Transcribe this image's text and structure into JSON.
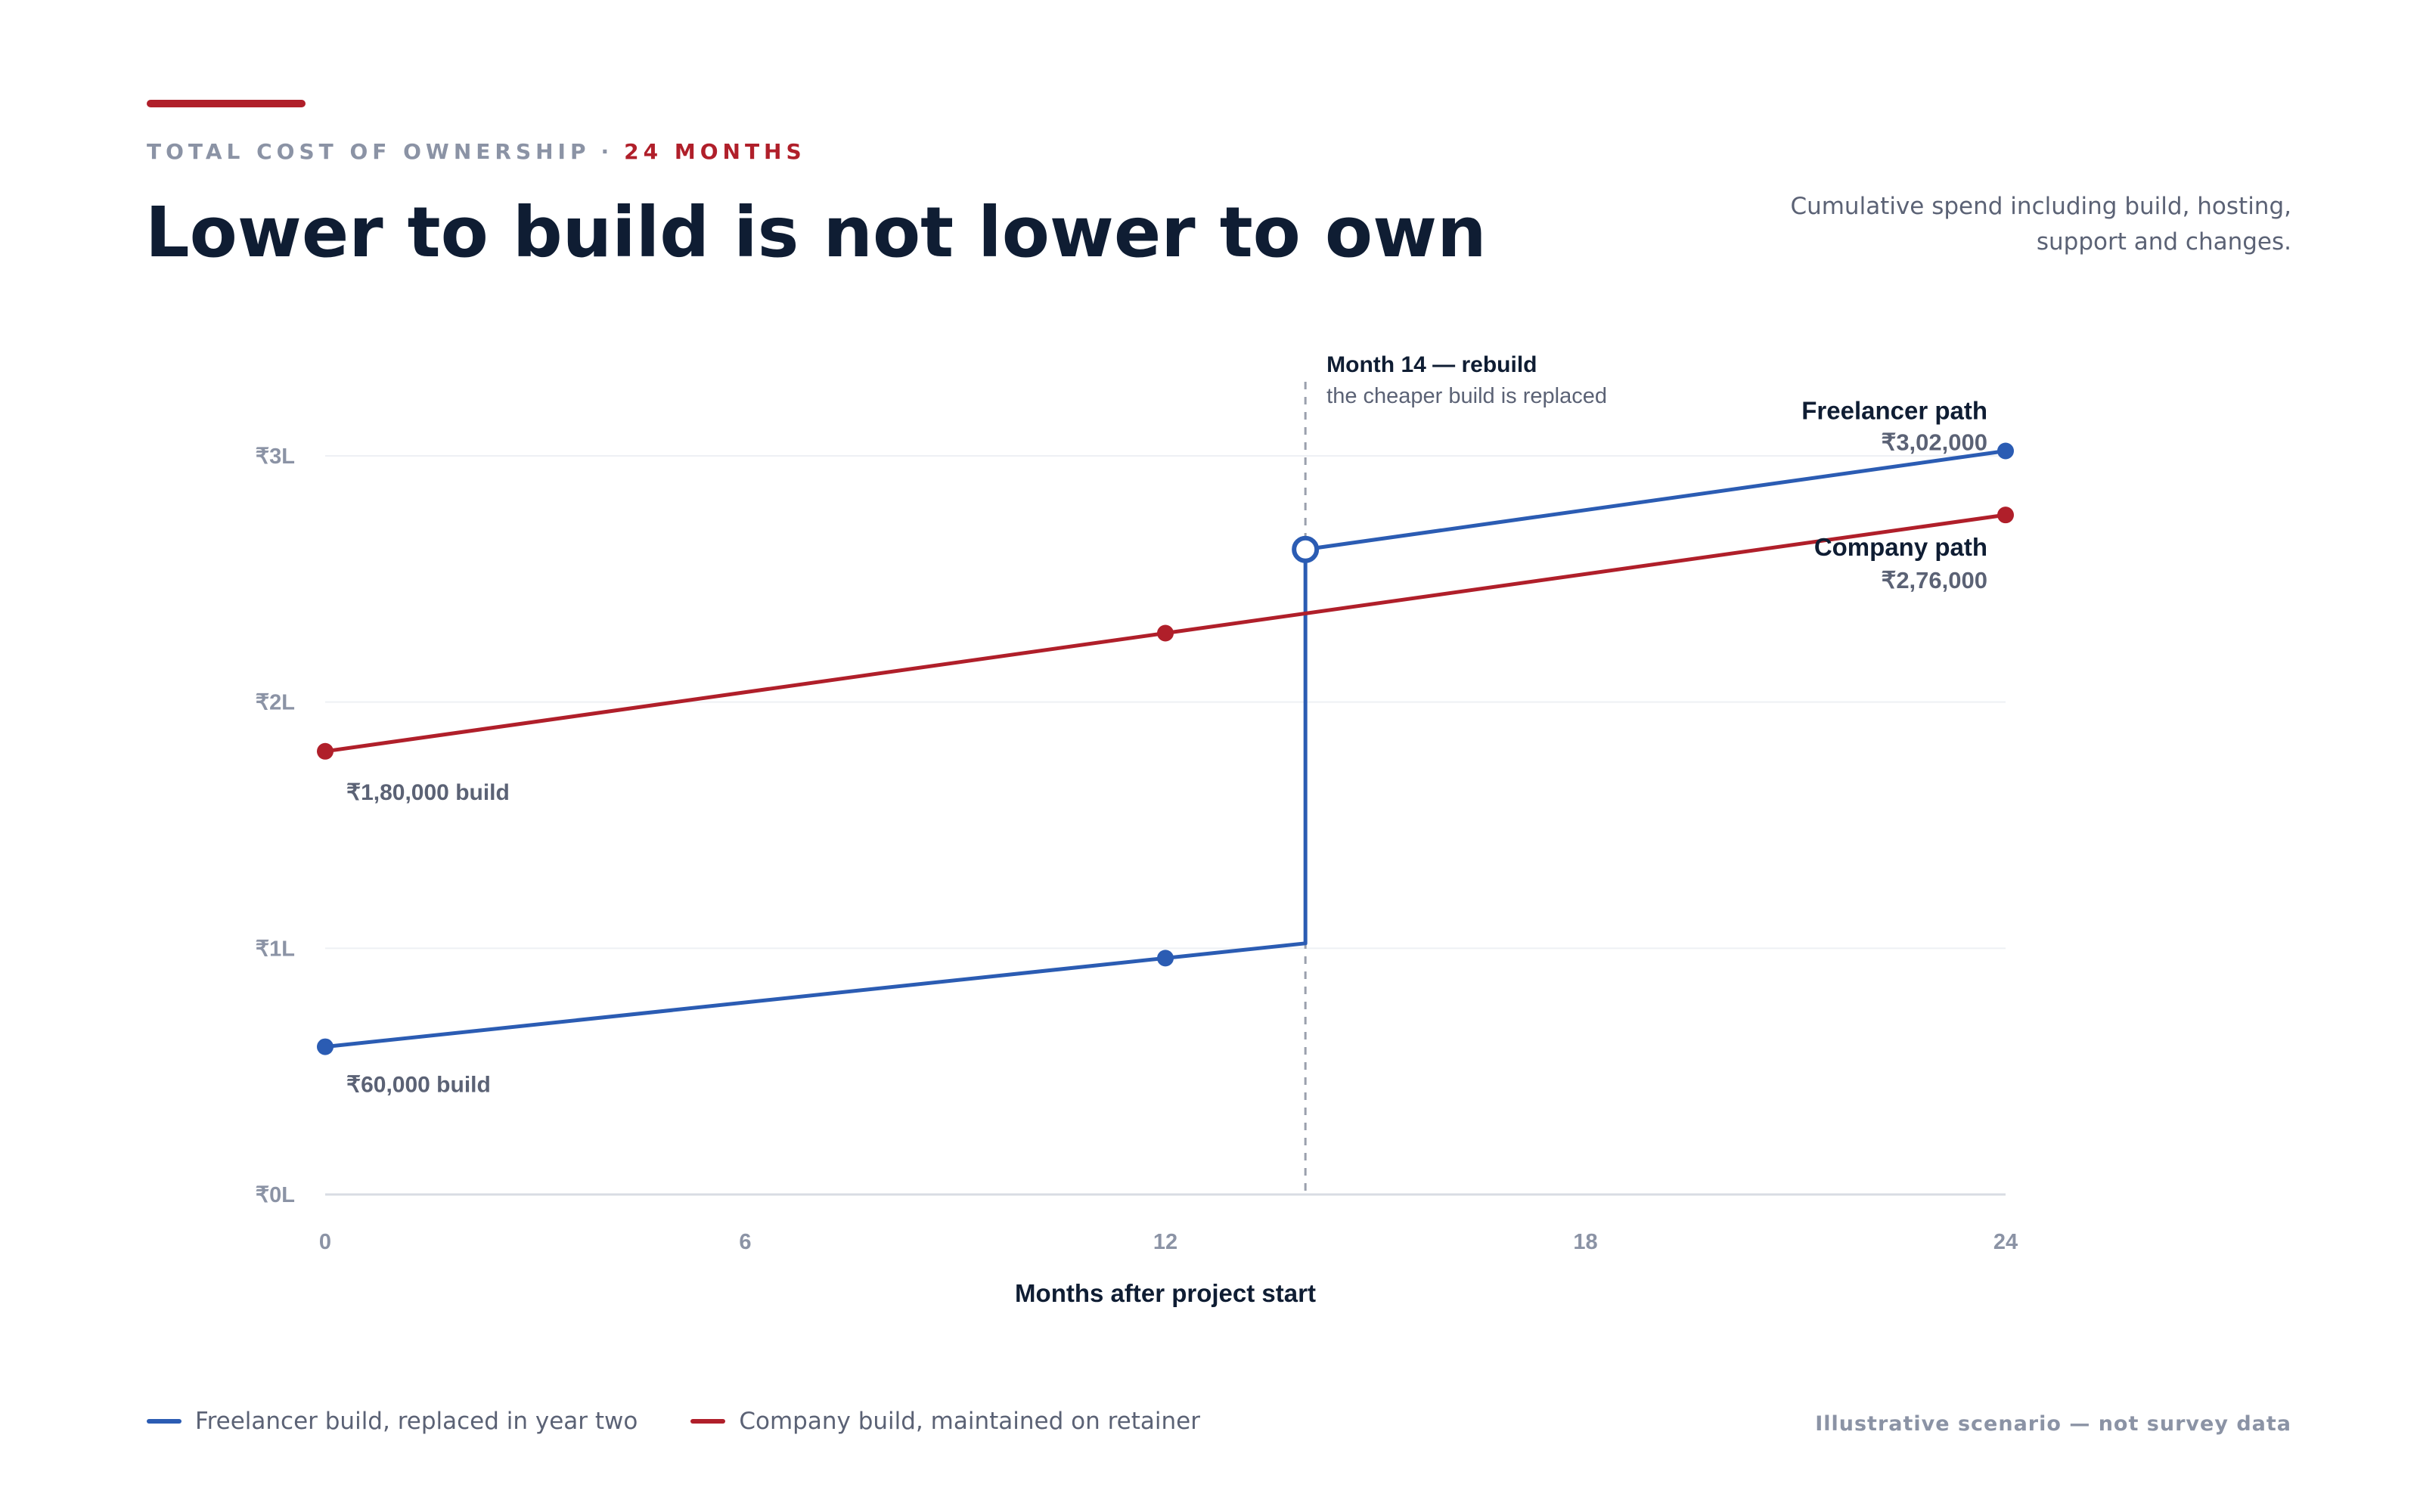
{
  "header": {
    "eyebrow_left": "TOTAL COST OF OWNERSHIP",
    "eyebrow_sep": "·",
    "eyebrow_right": "24 MONTHS",
    "title": "Lower to build is not lower to own",
    "subtitle": "Cumulative spend including build, hosting, support and changes."
  },
  "colors": {
    "accent": "#b01f2a",
    "freelancer": "#2b5cb3",
    "company": "#b01f2a",
    "ink": "#0f1d33",
    "muted": "#8b93a5"
  },
  "chart_data": {
    "type": "line",
    "xlabel": "Months after project start",
    "ylabel": "",
    "xlim": [
      0,
      24
    ],
    "ylim": [
      0,
      300000
    ],
    "x_ticks": [
      0,
      6,
      12,
      18,
      24
    ],
    "x_tick_labels": [
      "0",
      "6",
      "12",
      "18",
      "24"
    ],
    "y_ticks": [
      0,
      100000,
      200000,
      300000
    ],
    "y_tick_labels": [
      "₹0L",
      "₹1L",
      "₹2L",
      "₹3L"
    ],
    "grid": true,
    "series": [
      {
        "key": "freelancer",
        "name": "Freelancer path",
        "legend": "Freelancer build, replaced in year two",
        "color": "#2b5cb3",
        "points": [
          [
            0,
            60000
          ],
          [
            12,
            96000
          ],
          [
            14,
            102000
          ],
          [
            14,
            262000
          ],
          [
            24,
            302000
          ]
        ],
        "markers": [
          [
            0,
            60000
          ],
          [
            12,
            96000
          ],
          [
            24,
            302000
          ]
        ],
        "hollow_markers": [
          [
            14,
            262000
          ]
        ],
        "start_label": "₹60,000 build",
        "end_value": "₹3,02,000"
      },
      {
        "key": "company",
        "name": "Company path",
        "legend": "Company build, maintained on retainer",
        "color": "#b01f2a",
        "points": [
          [
            0,
            180000
          ],
          [
            12,
            228000
          ],
          [
            24,
            276000
          ]
        ],
        "markers": [
          [
            0,
            180000
          ],
          [
            12,
            228000
          ],
          [
            24,
            276000
          ]
        ],
        "start_label": "₹1,80,000 build",
        "end_value": "₹2,76,000"
      }
    ],
    "annotation": {
      "x": 14,
      "title": "Month 14 — rebuild",
      "text": "the cheaper build is replaced"
    }
  },
  "footer": {
    "note": "Illustrative scenario — not survey data"
  }
}
